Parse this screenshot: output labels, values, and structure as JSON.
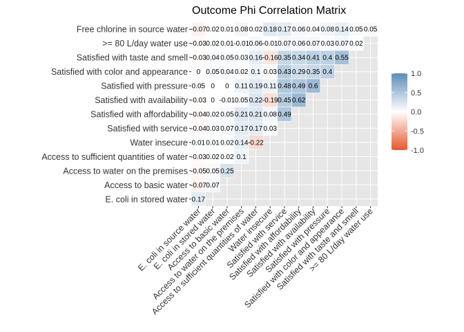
{
  "chart_data": {
    "type": "heatmap",
    "title": "Outcome Phi Correlation Matrix",
    "x_categories": [
      "E. coli in source water",
      "E. coli in stored water",
      "Access to basic water",
      "Access to water on the premises",
      "Access to sufficient quantities of water",
      "Water insecure",
      "Satisfied with service",
      "Satisfied with affordability",
      "Satisfied with availability",
      "Satisfied with pressure",
      "Satisfied with color and appearance",
      "Satisfied with taste and smell",
      ">= 80 L/day water use"
    ],
    "y_categories": [
      "E. coli in stored water",
      "Access to basic water",
      "Access to water on the premises",
      "Access to sufficient quantities of water",
      "Water insecure",
      "Satisfied with service",
      "Satisfied with affordability",
      "Satisfied with availability",
      "Satisfied with pressure",
      "Satisfied with color and appearance",
      "Satisfied with taste and smell",
      ">= 80 L/day water use",
      "Free chlorine in source water"
    ],
    "values": [
      [
        0.17
      ],
      [
        -0.07,
        0.07
      ],
      [
        -0.05,
        0.05,
        0.25
      ],
      [
        -0.03,
        0.02,
        0.02,
        0.1
      ],
      [
        0.01,
        0.01,
        0.02,
        0.14,
        -0.22
      ],
      [
        -0.04,
        0.03,
        0.07,
        0.17,
        0.17,
        0.03
      ],
      [
        -0.04,
        0.02,
        0.05,
        0.21,
        0.21,
        0.08,
        0.49
      ],
      [
        -0.03,
        0,
        -0.01,
        0.05,
        0.22,
        -0.19,
        0.45,
        0.62
      ],
      [
        0.05,
        0,
        0,
        0.11,
        0.19,
        0.11,
        0.48,
        0.49,
        0.6
      ],
      [
        0,
        0.05,
        0.04,
        0.02,
        0.1,
        0.03,
        0.43,
        0.29,
        0.35,
        0.4
      ],
      [
        -0.03,
        0.04,
        0.05,
        0.03,
        0.16,
        -0.16,
        0.35,
        0.34,
        0.41,
        0.4,
        0.55
      ],
      [
        -0.03,
        0.02,
        0.01,
        -0.01,
        0.06,
        -0.01,
        0.07,
        0.06,
        0.07,
        0.03,
        0.07,
        0.02
      ],
      [
        -0.07,
        0.02,
        0.01,
        0.08,
        0.02,
        0.18,
        0.17,
        0.06,
        0.04,
        0.08,
        0.14,
        0.05,
        0.05
      ]
    ],
    "value_labels": [
      [
        "0.17"
      ],
      [
        "-0.07",
        "0.07"
      ],
      [
        "-0.05",
        "0.05",
        "0.25"
      ],
      [
        "-0.03",
        "0.02",
        "0.02",
        "0.1"
      ],
      [
        "0.01",
        "0.01",
        "0.02",
        "0.14",
        "-0.22"
      ],
      [
        "-0.04",
        "0.03",
        "0.07",
        "0.17",
        "0.17",
        "0.03"
      ],
      [
        "-0.04",
        "0.02",
        "0.05",
        "0.21",
        "0.21",
        "0.08",
        "0.49"
      ],
      [
        "-0.03",
        "0",
        "-0.01",
        "0.05",
        "0.22",
        "-0.19",
        "0.45",
        "0.62"
      ],
      [
        "0.05",
        "0",
        "0",
        "0.11",
        "0.19",
        "0.11",
        "0.48",
        "0.49",
        "0.6"
      ],
      [
        "0",
        "0.05",
        "0.04",
        "0.02",
        "0.1",
        "0.03",
        "0.43",
        "0.29",
        "0.35",
        "0.4"
      ],
      [
        "-0.03",
        "0.04",
        "0.05",
        "0.03",
        "0.16",
        "-0.16",
        "0.35",
        "0.34",
        "0.41",
        "0.4",
        "0.55"
      ],
      [
        "-0.03",
        "0.02",
        "0.01",
        "-0.01",
        "0.06",
        "-0.01",
        "0.07",
        "0.06",
        "0.07",
        "0.03",
        "0.07",
        "0.02"
      ],
      [
        "-0.07",
        "0.02",
        "0.01",
        "0.08",
        "0.02",
        "0.18",
        "0.17",
        "0.06",
        "0.04",
        "0.08",
        "0.14",
        "0.05",
        "0.05"
      ]
    ],
    "color_scale": {
      "range": [
        -1,
        1
      ],
      "low_color": "#E4572E",
      "mid_color": "#FFFFFF",
      "high_color": "#5B8DB8",
      "ticks": [
        1.0,
        0.5,
        0.0,
        -0.5,
        -1.0
      ],
      "tick_labels": [
        "1.0",
        "0.5",
        "0.0",
        "-0.5",
        "-1.0"
      ]
    },
    "panel_background": "#E6E6E6",
    "grid": true,
    "legend_position": "right"
  }
}
